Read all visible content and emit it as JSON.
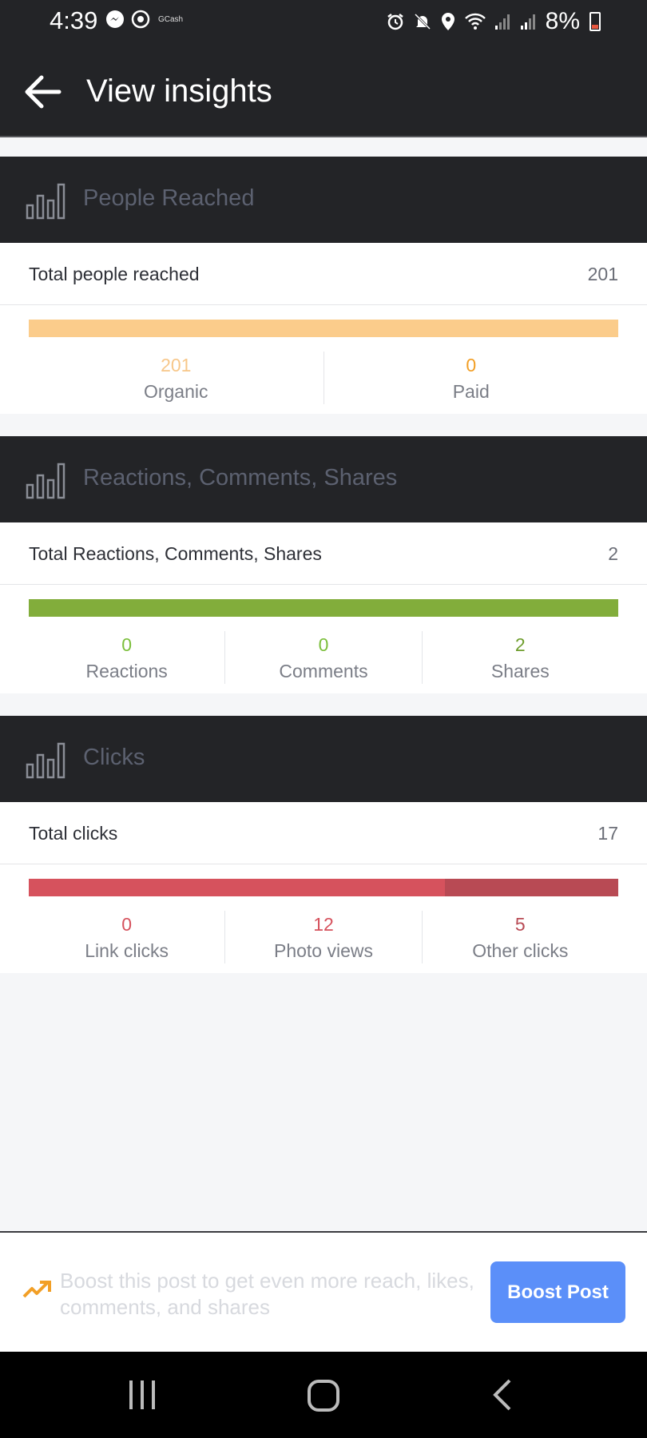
{
  "status_bar": {
    "time": "4:39",
    "app_label": "GCash",
    "battery": "8%"
  },
  "app_bar": {
    "title": "View insights"
  },
  "sections": {
    "reach": {
      "title": "People Reached",
      "total_label": "Total people reached",
      "total_value": "201",
      "segments": [
        {
          "label": "Organic",
          "value": "201",
          "color": "#fbcc8b"
        },
        {
          "label": "Paid",
          "value": "0",
          "color": "#f29f26"
        }
      ]
    },
    "engagement": {
      "title": "Reactions, Comments, Shares",
      "total_label": "Total Reactions, Comments, Shares",
      "total_value": "2",
      "segments": [
        {
          "label": "Reactions",
          "value": "0",
          "color": "#7cbf3c"
        },
        {
          "label": "Comments",
          "value": "0",
          "color": "#7cbf3c"
        },
        {
          "label": "Shares",
          "value": "2",
          "color": "#6f9e2e"
        }
      ]
    },
    "clicks": {
      "title": "Clicks",
      "total_label": "Total clicks",
      "total_value": "17",
      "segments": [
        {
          "label": "Link clicks",
          "value": "0",
          "color": "#d6525d"
        },
        {
          "label": "Photo views",
          "value": "12",
          "color": "#d6525d"
        },
        {
          "label": "Other clicks",
          "value": "5",
          "color": "#b84a54"
        }
      ]
    }
  },
  "boost": {
    "message": "Boost this post to get even more reach, likes, comments, and shares",
    "button_label": "Boost Post"
  },
  "colors": {
    "header_bg": "#232427",
    "reach_bar": "#fbcc8b",
    "engagement_bar": "#82ad3b",
    "clicks_bar_primary": "#d6525d",
    "clicks_bar_secondary": "#b84a54",
    "boost_button": "#5b8ff9"
  }
}
